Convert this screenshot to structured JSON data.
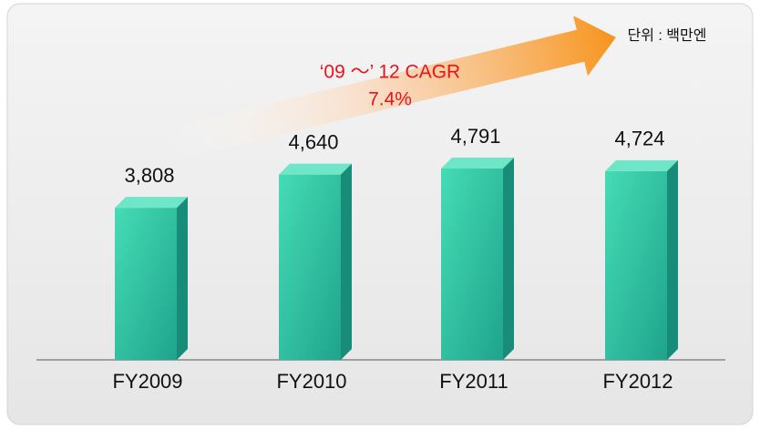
{
  "chart_data": {
    "type": "bar3d",
    "unit_label": "단위 : 백만엔",
    "annotations": [
      "‘09 ～’ 12 CAGR",
      "7.4%"
    ],
    "categories": [
      "FY2009",
      "FY2010",
      "FY2011",
      "FY2012"
    ],
    "values": [
      3808,
      4640,
      4791,
      4724
    ],
    "value_labels": [
      "3,808",
      "4,640",
      "4,791",
      "4,724"
    ],
    "color": "#2ec9a5"
  }
}
